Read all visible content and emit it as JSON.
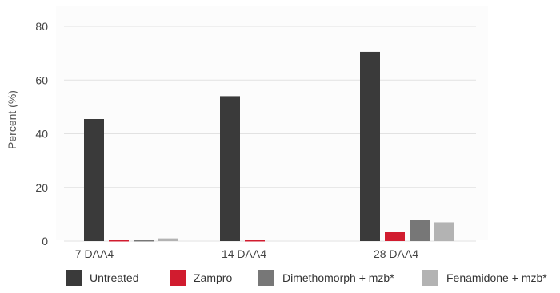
{
  "chart_data": {
    "type": "bar",
    "title": "",
    "xlabel": "",
    "ylabel": "Percent (%)",
    "ylim": [
      0,
      80
    ],
    "yticks": [
      0,
      20,
      40,
      60,
      80
    ],
    "grid": true,
    "legend_position": "bottom",
    "categories": [
      "7 DAA4",
      "14 DAA4",
      "28 DAA4"
    ],
    "series": [
      {
        "name": "Untreated",
        "color": "#3a3a3a",
        "values": [
          45.5,
          54,
          70.5
        ]
      },
      {
        "name": "Zampro",
        "color": "#d11c2f",
        "values": [
          0.3,
          0.3,
          3.5
        ]
      },
      {
        "name": "Dimethomorph + mzb*",
        "color": "#777777",
        "values": [
          0.3,
          0,
          8
        ]
      },
      {
        "name": "Fenamidone + mzb*",
        "color": "#b3b3b3",
        "values": [
          1,
          0,
          7
        ]
      }
    ]
  }
}
